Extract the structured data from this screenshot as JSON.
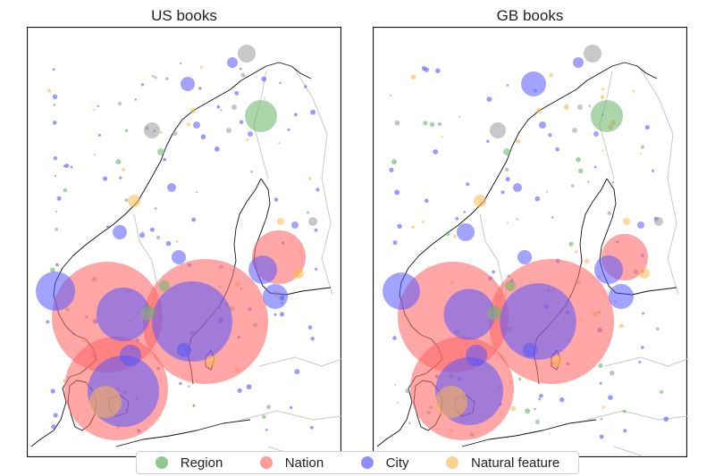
{
  "panels": [
    {
      "title": "US books"
    },
    {
      "title": "GB books"
    }
  ],
  "legend": [
    {
      "label": "Region",
      "color": "#7cbf7c"
    },
    {
      "label": "Nation",
      "color": "#ff8a8a"
    },
    {
      "label": "City",
      "color": "#7a7aff"
    },
    {
      "label": "Natural feature",
      "color": "#ffc979"
    }
  ],
  "colors": {
    "region": "#64b464",
    "nation": "#ff6b6b",
    "city": "#5555ff",
    "natural": "#ffb84d",
    "unknown": "#9a9a9a",
    "coast": "#111111",
    "border": "#c8c8c8"
  }
}
